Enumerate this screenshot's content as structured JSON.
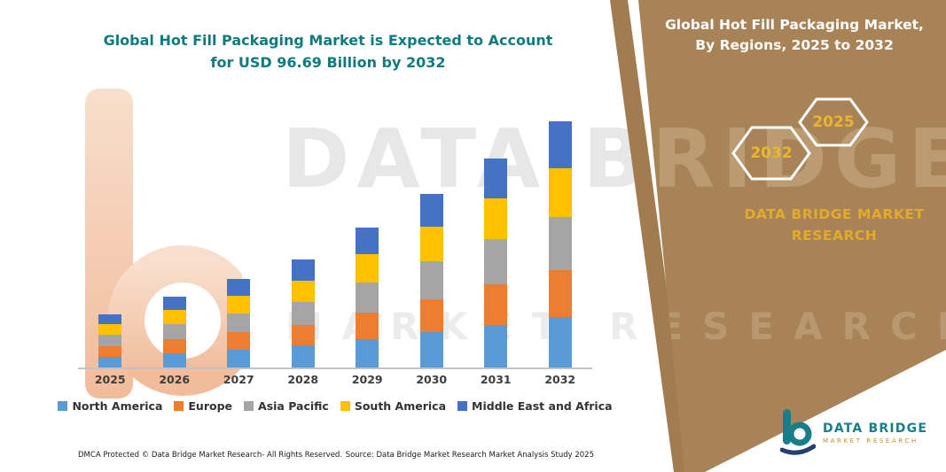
{
  "header": {
    "chart_title": "Global Hot Fill Packaging Market is Expected to Account for USD 96.69 Billion by 2032"
  },
  "right_panel": {
    "title": "Global Hot Fill Packaging Market, By Regions, 2025 to 2032",
    "hexagons": {
      "left_year": "2032",
      "right_year": "2025"
    },
    "brand_name": "DATA BRIDGE MARKET RESEARCH",
    "bg_color": "#a78357",
    "accent_gold": "#e2ab2c"
  },
  "watermark": {
    "line1": "DATA BRIDGE",
    "line2": "MARKET RESEARCH"
  },
  "footer": {
    "dmca": "DMCA Protected © Data Bridge Market Research-  All Rights Reserved.",
    "source": "Source: Data Bridge Market Research  Market Analysis Study 2025"
  },
  "logo": {
    "name": "DATA BRIDGE",
    "tagline": "MARKET RESEARCH",
    "teal": "#1a7d8a"
  },
  "chart_data": {
    "type": "bar",
    "subtype": "stacked",
    "title": "Global Hot Fill Packaging Market is Expected to Account for USD 96.69 Billion by 2032",
    "unit": "USD Billion",
    "categories": [
      "2025",
      "2026",
      "2027",
      "2028",
      "2029",
      "2030",
      "2031",
      "2032"
    ],
    "series": [
      {
        "name": "North America",
        "color": "#5B9BD5",
        "values": [
          4.3,
          5.7,
          7.1,
          8.6,
          11.2,
          13.9,
          16.8,
          19.8
        ]
      },
      {
        "name": "Europe",
        "color": "#ED7D31",
        "values": [
          4.0,
          5.3,
          6.7,
          8.1,
          10.5,
          13.0,
          15.7,
          18.5
        ]
      },
      {
        "name": "Asia Pacific",
        "color": "#A5A5A5",
        "values": [
          4.5,
          6.0,
          7.5,
          9.1,
          11.8,
          14.7,
          17.7,
          20.9
        ]
      },
      {
        "name": "South America",
        "color": "#FFC000",
        "values": [
          4.2,
          5.5,
          6.9,
          8.4,
          10.9,
          13.5,
          16.3,
          19.1
        ]
      },
      {
        "name": "Middle East and Africa",
        "color": "#4472C4",
        "values": [
          4.0,
          5.3,
          6.7,
          8.1,
          10.5,
          12.9,
          15.6,
          18.4
        ]
      }
    ],
    "totals": [
      21.0,
      27.8,
      34.9,
      42.3,
      54.9,
      68.0,
      82.1,
      96.7
    ],
    "ylim": [
      0,
      100
    ],
    "grid": false,
    "legend_position": "bottom",
    "xlabel": "",
    "ylabel": ""
  }
}
